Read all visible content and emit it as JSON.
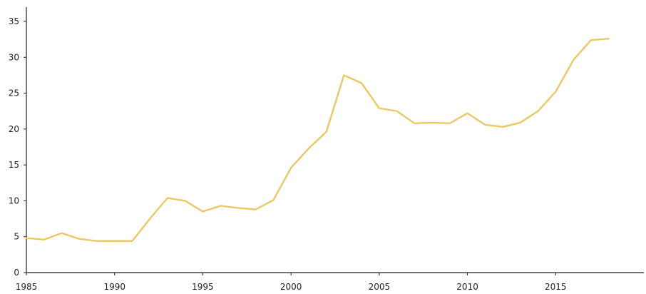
{
  "chart_data": {
    "type": "line",
    "title": "",
    "xlabel": "",
    "ylabel": "",
    "xlim": [
      1985,
      2020
    ],
    "ylim": [
      0,
      35
    ],
    "grid": false,
    "x_ticks": [
      1985,
      1990,
      1995,
      2000,
      2005,
      2010,
      2015
    ],
    "y_ticks": [
      0,
      5,
      10,
      15,
      20,
      25,
      30,
      35
    ],
    "series": [
      {
        "color": "#EBC865",
        "x": [
          1985,
          1986,
          1987,
          1988,
          1989,
          1990,
          1991,
          1992,
          1993,
          1994,
          1995,
          1996,
          1997,
          1998,
          1999,
          2000,
          2001,
          2002,
          2003,
          2004,
          2005,
          2006,
          2007,
          2008,
          2009,
          2010,
          2011,
          2012,
          2013,
          2014,
          2015,
          2016,
          2017,
          2018
        ],
        "values": [
          4.8,
          4.6,
          5.5,
          4.7,
          4.4,
          4.4,
          4.4,
          7.5,
          10.4,
          10.0,
          8.5,
          9.3,
          9.0,
          8.8,
          10.1,
          14.6,
          17.3,
          19.6,
          27.5,
          26.4,
          22.9,
          22.5,
          20.8,
          20.9,
          20.8,
          22.2,
          20.6,
          20.3,
          20.9,
          22.5,
          25.2,
          29.6,
          32.4,
          32.6
        ]
      }
    ]
  }
}
